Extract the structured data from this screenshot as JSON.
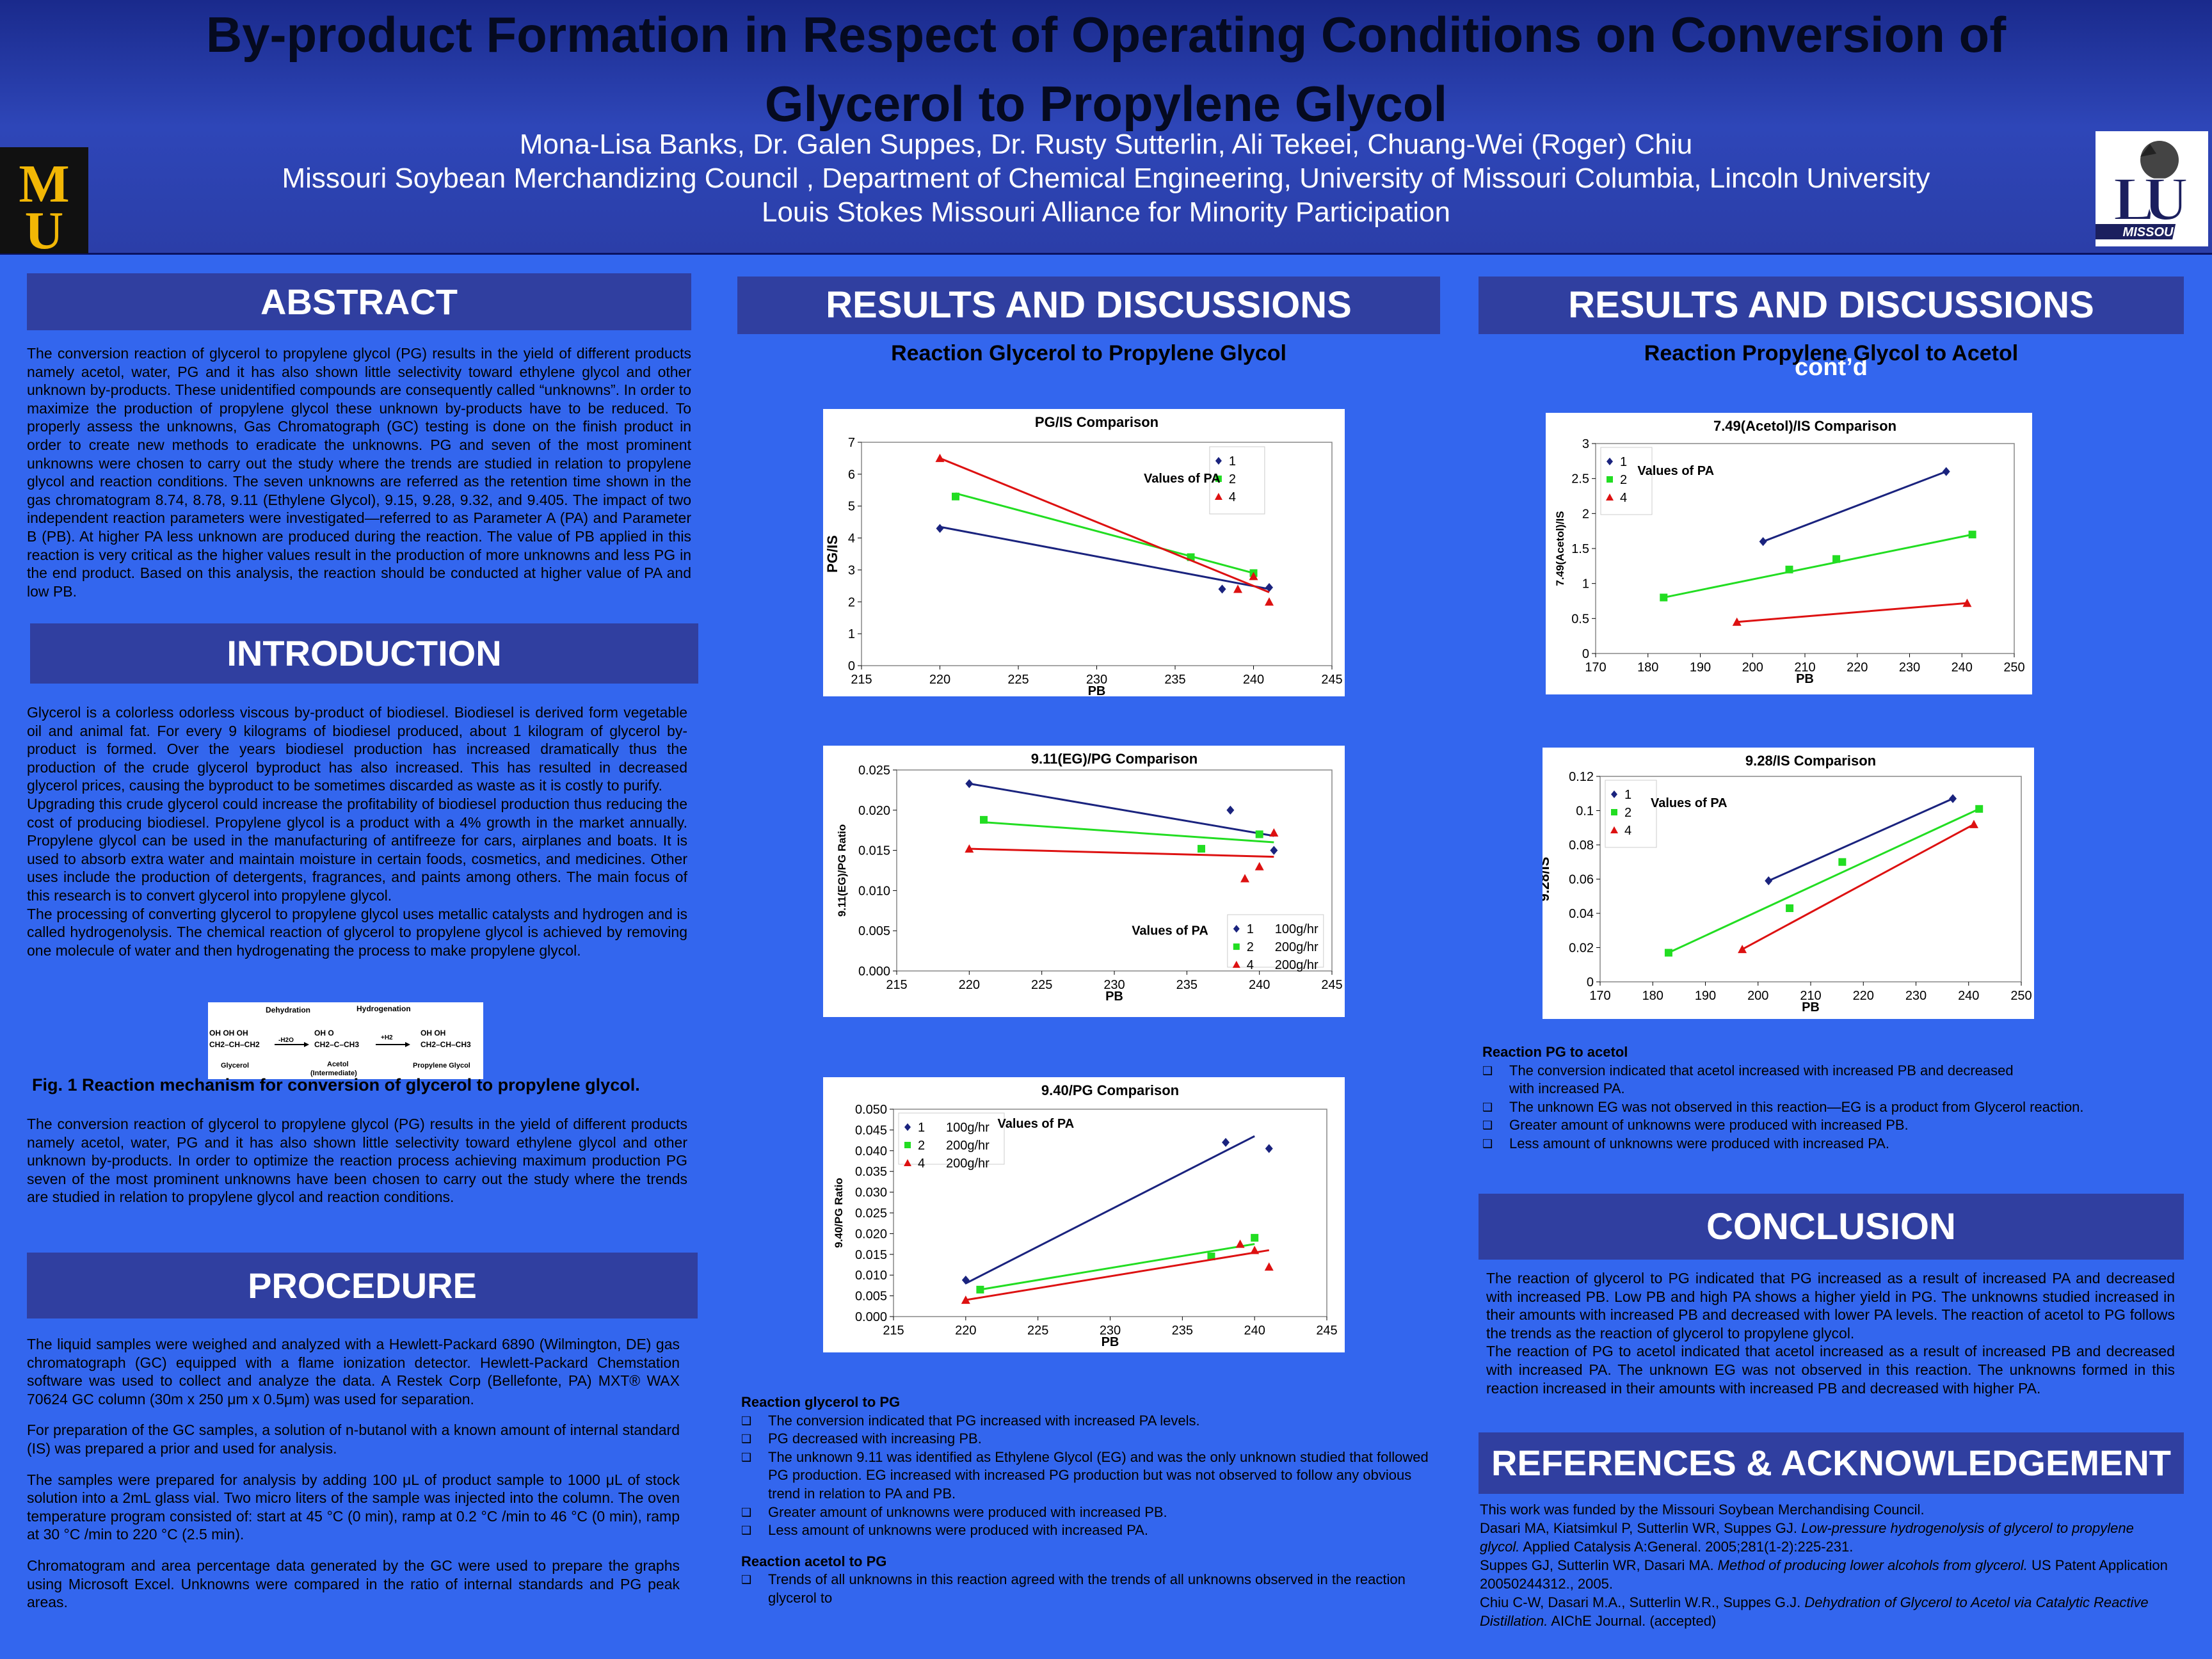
{
  "poster": {
    "title_line1": "By-product Formation in Respect of Operating Conditions on Conversion of",
    "title_line2": "Glycerol to Propylene Glycol",
    "authors": "Mona-Lisa Banks, Dr. Galen Suppes, Dr. Rusty Sutterlin, Ali Tekeei, Chuang-Wei (Roger) Chiu",
    "affiliation1": "Missouri Soybean Merchandizing Council , Department of Chemical Engineering, University of Missouri Columbia,  Lincoln University",
    "affiliation2": "Louis Stokes Missouri Alliance for Minority Participation",
    "logo_left_text": "MU",
    "logo_right_text": "MISSOURI"
  },
  "headings": {
    "abstract": "ABSTRACT",
    "introduction": "INTRODUCTION",
    "procedure": "PROCEDURE",
    "results": "RESULTS AND DISCUSSIONS",
    "results_cont": "RESULTS AND DISCUSSIONS",
    "results_cont_suffix": "cont’d",
    "conclusion": "CONCLUSION",
    "references": "REFERENCES & ACKNOWLEDGEMENT",
    "sub_glycerol_pg": "Reaction Glycerol to Propylene Glycol",
    "sub_pg_acetol": "Reaction Propylene Glycol to Acetol"
  },
  "abstract": "The conversion reaction of glycerol to propylene glycol (PG) results in the yield of different products namely acetol, water, PG and it has also shown little selectivity toward ethylene glycol and other unknown by-products.  These unidentified compounds are consequently called “unknowns”.  In order to maximize the production of propylene glycol these unknown by-products have to be reduced.  To properly assess the unknowns, Gas Chromatograph (GC) testing is done on the finish product in order to create new methods to eradicate the unknowns.  PG and seven of the most prominent unknowns were chosen to carry out the study where the trends are studied in relation to propylene glycol and reaction conditions. The seven unknowns are referred as the retention time shown in the gas chromatogram 8.74, 8.78, 9.11 (Ethylene Glycol), 9.15, 9.28, 9.32, and 9.405. The impact of two independent reaction parameters were investigated—referred to as Parameter A (PA) and Parameter B (PB).   At higher PA less unknown are produced during the reaction.  The value of PB applied in this reaction is very critical as the higher values result in the production of more unknowns and less PG in the end product.  Based on this analysis, the reaction should be conducted at higher value of PA and low PB.",
  "introduction": [
    "Glycerol is a colorless odorless viscous by-product of biodiesel.  Biodiesel is derived form vegetable oil and animal fat.  For every 9 kilograms of biodiesel produced, about 1 kilogram of glycerol by-product is formed.  Over the years biodiesel production has increased dramatically thus the production of the crude glycerol byproduct has also increased.  This has resulted in decreased glycerol prices, causing the byproduct to be sometimes discarded as waste as it is costly to purify.",
    "Upgrading this crude glycerol could increase the profitability of biodiesel production thus reducing the cost of producing biodiesel. Propylene glycol is a product with a 4% growth in the market annually.   Propylene glycol can be used in the manufacturing of antifreeze for cars, airplanes and boats.  It is used to absorb extra water and maintain moisture in certain foods, cosmetics, and medicines.  Other uses include the production of detergents, fragrances, and paints among others.  The main focus of this research is to convert glycerol into propylene glycol.",
    "The processing of converting glycerol to propylene glycol uses metallic catalysts and hydrogen and is called hydrogenolysis.  The chemical reaction of glycerol to propylene glycol is achieved by removing one molecule of water and then hydrogenating the process to make propylene glycol."
  ],
  "figure1": {
    "caption": "Fig. 1   Reaction mechanism for conversion of glycerol to propylene glycol.",
    "label_dehydration": "Dehydration",
    "label_hydrogenation": "Hydrogenation",
    "label_glycerol": "Glycerol",
    "label_acetol": "Acetol",
    "label_intermediate": "(Intermediate)",
    "label_pg": "Propylene Glycol",
    "label_minus_h2o": "-H2O",
    "label_plus_h2": "+H2",
    "struct_glycerol_top": "OH  OH  OH",
    "struct_glycerol_bot": "CH2–CH–CH2",
    "struct_acetol_top": "OH   O",
    "struct_acetol_bot": "CH2–C–CH3",
    "struct_pg_top": "OH  OH",
    "struct_pg_bot": "CH2–CH–CH3"
  },
  "intro_after_fig": "The conversion reaction of glycerol to propylene glycol (PG) results in the yield of different products namely acetol, water, PG and it has also shown little selectivity toward ethylene glycol and other unknown by-products.  In order to optimize the reaction process achieving maximum production PG seven of the most prominent unknowns have been chosen to carry out the study where the trends are studied in relation to propylene glycol and reaction conditions.",
  "procedure": [
    "The liquid samples were weighed and analyzed with a Hewlett-Packard 6890 (Wilmington, DE) gas chromatograph (GC) equipped with a flame ionization detector.   Hewlett-Packard Chemstation software was used to collect and analyze the data.  A Restek Corp (Bellefonte, PA) MXT® WAX 70624 GC column (30m x 250 μm x 0.5μm) was used for separation.",
    "For preparation of the GC samples, a solution of n-butanol with a known amount of internal standard (IS) was prepared a prior and used for analysis.",
    "The samples were prepared for analysis by adding 100 μL of product sample to 1000 μL of stock solution into a 2mL glass vial.  Two micro liters of the sample was injected into the column. The oven temperature program consisted of: start at 45 °C (0 min), ramp at 0.2 °C /min to 46 °C (0 min), ramp at 30 °C /min to 220 °C (2.5 min).",
    "Chromatogram and area percentage data generated by the GC were used to prepare the graphs using Microsoft Excel.  Unknowns were compared in the ratio of internal standards and PG peak areas."
  ],
  "results_glycerol_pg": {
    "heading": "Reaction glycerol to PG",
    "items": [
      "The conversion indicated that PG increased with increased PA levels.",
      " PG decreased with increasing PB.",
      "The unknown 9.11 was identified as Ethylene Glycol (EG) and was the only unknown studied that followed PG production.  EG increased with increased PG production but was not observed to follow any obvious trend in relation to PA and PB.",
      "Greater amount of unknowns were produced with increased PB.",
      "Less amount of unknowns were produced with increased PA."
    ],
    "heading2": "Reaction acetol to PG",
    "items2": [
      "Trends of all unknowns in this reaction agreed with the trends of all unknowns observed in the reaction glycerol to"
    ]
  },
  "results_pg_acetol": {
    "heading": "Reaction PG to acetol",
    "items": [
      "The conversion indicated that acetol increased with increased PB and decreased with increased PA.",
      "The unknown EG was not observed in this reaction—EG is a product from Glycerol reaction.",
      "Greater amount of unknowns were produced with increased PB.",
      "Less amount of unknowns were produced with increased PA."
    ]
  },
  "conclusion": [
    "The reaction of glycerol to PG indicated that PG increased as a result of increased PA and decreased with increased PB.  Low PB and high PA shows a higher yield in PG.  The unknowns studied increased in their amounts with increased PB and decreased with lower PA levels.  The reaction of acetol to PG follows the trends as the reaction of glycerol to propylene glycol.",
    "The reaction of PG to acetol indicated that acetol increased as a result of increased PB and decreased with increased PA.  The unknown EG was not observed in this reaction.  The unknowns formed in this reaction increased in their amounts with increased PB and decreased with higher PA."
  ],
  "references": {
    "ack": "This work was funded by the Missouri Soybean Merchandising Council.",
    "r1a": "Dasari MA, Kiatsimkul P, Sutterlin WR, Suppes GJ. ",
    "r1b": "Low-pressure hydrogenolysis of glycerol to propylene glycol.",
    "r1c": " Applied Catalysis A:General. 2005;281(1-2):225-231.",
    "r2a": "Suppes GJ, Sutterlin WR, Dasari MA. ",
    "r2b": "Method of producing lower alcohols from glycerol.",
    "r2c": " US Patent Application 20050244312., 2005.",
    "r3a": "Chiu C-W, Dasari M.A., Sutterlin W.R., Suppes G.J. ",
    "r3b": "Dehydration of Glycerol to Acetol via Catalytic Reactive Distillation.",
    "r3c": " AIChE Journal. (accepted)"
  },
  "chart_data": [
    {
      "id": "c1",
      "type": "scatter",
      "title": "PG/IS Comparison",
      "xlabel": "PB",
      "ylabel": "PG/IS",
      "xlim": [
        215,
        245
      ],
      "ylim": [
        0,
        7
      ],
      "xticks": [
        "215",
        "220",
        "225",
        "230",
        "235",
        "240",
        "245"
      ],
      "yticks": [
        "0",
        "1",
        "2",
        "3",
        "4",
        "5",
        "6",
        "7"
      ],
      "legend_title": "Values of PA",
      "series": [
        {
          "name": "1",
          "color": "#1a237e",
          "marker": "diamond",
          "points": [
            [
              220,
              4.3
            ],
            [
              238,
              2.4
            ],
            [
              241,
              2.45
            ]
          ],
          "line": [
            [
              220,
              4.35
            ],
            [
              241,
              2.4
            ]
          ]
        },
        {
          "name": "2",
          "color": "#22dd22",
          "marker": "square",
          "points": [
            [
              221,
              5.3
            ],
            [
              236,
              3.4
            ],
            [
              240,
              2.9
            ]
          ],
          "line": [
            [
              221,
              5.4
            ],
            [
              240,
              2.9
            ]
          ]
        },
        {
          "name": "4",
          "color": "#dd1111",
          "marker": "triangle",
          "points": [
            [
              220,
              6.5
            ],
            [
              239,
              2.4
            ],
            [
              240,
              2.8
            ],
            [
              241,
              2.0
            ]
          ],
          "line": [
            [
              220,
              6.5
            ],
            [
              241,
              2.3
            ]
          ]
        }
      ]
    },
    {
      "id": "c2",
      "type": "scatter",
      "title": "9.11(EG)/PG Comparison",
      "xlabel": "PB",
      "ylabel": "9.11(EG)/PG Ratio",
      "xlim": [
        215,
        245
      ],
      "ylim": [
        0,
        0.025
      ],
      "xticks": [
        "215",
        "220",
        "225",
        "230",
        "235",
        "240",
        "245"
      ],
      "yticks": [
        "0.000",
        "0.005",
        "0.010",
        "0.015",
        "0.020",
        "0.025"
      ],
      "legend_title": "Values of PA",
      "series": [
        {
          "name": "1",
          "extra": "100g/hr",
          "color": "#1a237e",
          "marker": "diamond",
          "points": [
            [
              220,
              0.0233
            ],
            [
              238,
              0.02
            ],
            [
              241,
              0.015
            ]
          ],
          "line": [
            [
              220,
              0.0233
            ],
            [
              241,
              0.0168
            ]
          ]
        },
        {
          "name": "2",
          "extra": "200g/hr",
          "color": "#22dd22",
          "marker": "square",
          "points": [
            [
              221,
              0.0188
            ],
            [
              236,
              0.0152
            ],
            [
              240,
              0.017
            ]
          ],
          "line": [
            [
              221,
              0.0185
            ],
            [
              241,
              0.016
            ]
          ]
        },
        {
          "name": "4",
          "extra": "200g/hr",
          "color": "#dd1111",
          "marker": "triangle",
          "points": [
            [
              220,
              0.0152
            ],
            [
              239,
              0.0115
            ],
            [
              240,
              0.013
            ],
            [
              241,
              0.0172
            ]
          ],
          "line": [
            [
              220,
              0.0152
            ],
            [
              241,
              0.0142
            ]
          ]
        }
      ]
    },
    {
      "id": "c3",
      "type": "scatter",
      "title": "9.40/PG Comparison",
      "xlabel": "PB",
      "ylabel": "9.40/PG Ratio",
      "xlim": [
        215,
        245
      ],
      "ylim": [
        0,
        0.05
      ],
      "xticks": [
        "215",
        "220",
        "225",
        "230",
        "235",
        "240",
        "245"
      ],
      "yticks": [
        "0.000",
        "0.005",
        "0.010",
        "0.015",
        "0.020",
        "0.025",
        "0.030",
        "0.035",
        "0.040",
        "0.045",
        "0.050"
      ],
      "legend_title": "Values of PA",
      "series": [
        {
          "name": "1",
          "extra": "100g/hr",
          "color": "#1a237e",
          "marker": "diamond",
          "points": [
            [
              220,
              0.0088
            ],
            [
              238,
              0.042
            ],
            [
              241,
              0.0405
            ]
          ],
          "line": [
            [
              220,
              0.008
            ],
            [
              240,
              0.0435
            ]
          ]
        },
        {
          "name": "2",
          "extra": "200g/hr",
          "color": "#22dd22",
          "marker": "square",
          "points": [
            [
              221,
              0.0065
            ],
            [
              237,
              0.0145
            ],
            [
              240,
              0.019
            ]
          ],
          "line": [
            [
              221,
              0.0065
            ],
            [
              240,
              0.0175
            ]
          ]
        },
        {
          "name": "4",
          "extra": "200g/hr",
          "color": "#dd1111",
          "marker": "triangle",
          "points": [
            [
              220,
              0.004
            ],
            [
              239,
              0.0175
            ],
            [
              240,
              0.016
            ],
            [
              241,
              0.012
            ]
          ],
          "line": [
            [
              220,
              0.004
            ],
            [
              241,
              0.016
            ]
          ]
        }
      ]
    },
    {
      "id": "c4",
      "type": "scatter",
      "title": "7.49(Acetol)/IS Comparison",
      "xlabel": "PB",
      "ylabel": "7.49(Acetol)/IS",
      "xlim": [
        170,
        250
      ],
      "ylim": [
        0,
        3
      ],
      "xticks": [
        "170",
        "180",
        "190",
        "200",
        "210",
        "220",
        "230",
        "240",
        "250"
      ],
      "yticks": [
        "0",
        "0.5",
        "1",
        "1.5",
        "2",
        "2.5",
        "3"
      ],
      "legend_title": "Values of PA",
      "series": [
        {
          "name": "1",
          "color": "#1a237e",
          "marker": "diamond",
          "points": [
            [
              202,
              1.6
            ],
            [
              237,
              2.6
            ]
          ],
          "line": [
            [
              202,
              1.6
            ],
            [
              237,
              2.6
            ]
          ]
        },
        {
          "name": "2",
          "color": "#22dd22",
          "marker": "square",
          "points": [
            [
              183,
              0.8
            ],
            [
              207,
              1.2
            ],
            [
              216,
              1.35
            ],
            [
              242,
              1.7
            ]
          ],
          "line": [
            [
              183,
              0.8
            ],
            [
              242,
              1.7
            ]
          ]
        },
        {
          "name": "4",
          "color": "#dd1111",
          "marker": "triangle",
          "points": [
            [
              197,
              0.45
            ],
            [
              241,
              0.72
            ]
          ],
          "line": [
            [
              197,
              0.45
            ],
            [
              241,
              0.72
            ]
          ]
        }
      ]
    },
    {
      "id": "c5",
      "type": "scatter",
      "title": "9.28/IS Comparison",
      "xlabel": "PB",
      "ylabel": "9.28/IS",
      "xlim": [
        170,
        250
      ],
      "ylim": [
        0,
        0.12
      ],
      "xticks": [
        "170",
        "180",
        "190",
        "200",
        "210",
        "220",
        "230",
        "240",
        "250"
      ],
      "yticks": [
        "0",
        "0.02",
        "0.04",
        "0.06",
        "0.08",
        "0.1",
        "0.12"
      ],
      "legend_title": "Values of PA",
      "series": [
        {
          "name": "1",
          "color": "#1a237e",
          "marker": "diamond",
          "points": [
            [
              202,
              0.059
            ],
            [
              237,
              0.107
            ]
          ],
          "line": [
            [
              202,
              0.059
            ],
            [
              237,
              0.107
            ]
          ]
        },
        {
          "name": "2",
          "color": "#22dd22",
          "marker": "square",
          "points": [
            [
              183,
              0.017
            ],
            [
              206,
              0.043
            ],
            [
              216,
              0.07
            ],
            [
              242,
              0.101
            ]
          ],
          "line": [
            [
              183,
              0.017
            ],
            [
              242,
              0.101
            ]
          ]
        },
        {
          "name": "4",
          "color": "#dd1111",
          "marker": "triangle",
          "points": [
            [
              197,
              0.019
            ],
            [
              241,
              0.092
            ]
          ],
          "line": [
            [
              197,
              0.019
            ],
            [
              241,
              0.092
            ]
          ]
        }
      ]
    }
  ]
}
